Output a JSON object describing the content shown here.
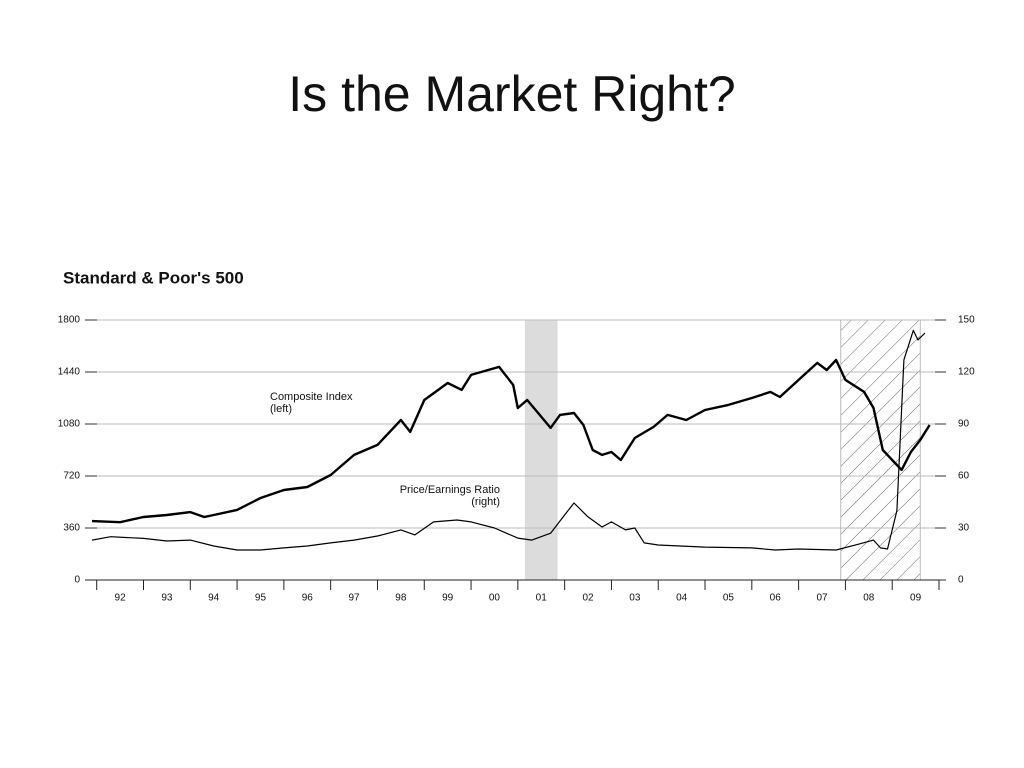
{
  "slide_title": "Is the Market Right?",
  "chart_data": {
    "type": "line",
    "title": "Standard & Poor's 500",
    "annotations": [
      [
        "Composite Index",
        "(left)"
      ],
      [
        "Price/Earnings Ratio",
        "(right)"
      ]
    ],
    "xlim": [
      1991.75,
      2010.0
    ],
    "xticks": [
      {
        "value": 1992,
        "label": "92"
      },
      {
        "value": 1993,
        "label": "93"
      },
      {
        "value": 1994,
        "label": "94"
      },
      {
        "value": 1995,
        "label": "95"
      },
      {
        "value": 1996,
        "label": "96"
      },
      {
        "value": 1997,
        "label": "97"
      },
      {
        "value": 1998,
        "label": "98"
      },
      {
        "value": 1999,
        "label": "99"
      },
      {
        "value": 2000,
        "label": "00"
      },
      {
        "value": 2001,
        "label": "01"
      },
      {
        "value": 2002,
        "label": "02"
      },
      {
        "value": 2003,
        "label": "03"
      },
      {
        "value": 2004,
        "label": "04"
      },
      {
        "value": 2005,
        "label": "05"
      },
      {
        "value": 2006,
        "label": "06"
      },
      {
        "value": 2007,
        "label": "07"
      },
      {
        "value": 2008,
        "label": "08"
      },
      {
        "value": 2009,
        "label": "09"
      }
    ],
    "ylim": [
      0,
      1800
    ],
    "yticks": [
      0,
      360,
      720,
      1080,
      1440,
      1800
    ],
    "y2lim": [
      0,
      150
    ],
    "y2ticks": [
      0,
      30,
      60,
      90,
      120,
      150
    ],
    "grid": true,
    "spans": [
      {
        "x": [
          2001.15,
          2001.85
        ],
        "style": "solid"
      },
      {
        "x": [
          2007.9,
          2009.6
        ],
        "style": "hatched"
      }
    ],
    "series": [
      {
        "name": "Composite Index",
        "color": "#000000",
        "axis": "y",
        "x": [
          1991.9,
          1992.5,
          1993.0,
          1993.5,
          1994.0,
          1994.3,
          1994.5,
          1995.0,
          1995.5,
          1996.0,
          1996.5,
          1997.0,
          1997.5,
          1998.0,
          1998.5,
          1998.7,
          1999.0,
          1999.5,
          1999.8,
          2000.0,
          2000.6,
          2000.9,
          2001.0,
          2001.2,
          2001.7,
          2001.9,
          2002.2,
          2002.4,
          2002.6,
          2002.8,
          2003.0,
          2003.2,
          2003.5,
          2003.9,
          2004.2,
          2004.6,
          2005.0,
          2005.5,
          2006.0,
          2006.4,
          2006.6,
          2007.0,
          2007.4,
          2007.6,
          2007.8,
          2008.0,
          2008.4,
          2008.6,
          2008.8,
          2009.0,
          2009.2,
          2009.4,
          2009.6,
          2009.8
        ],
        "values": [
          408,
          400,
          436,
          450,
          470,
          436,
          450,
          485,
          568,
          623,
          644,
          727,
          866,
          935,
          1108,
          1025,
          1246,
          1364,
          1316,
          1420,
          1475,
          1350,
          1191,
          1246,
          1053,
          1143,
          1156,
          1073,
          900,
          866,
          886,
          831,
          983,
          1060,
          1143,
          1108,
          1177,
          1212,
          1260,
          1302,
          1267,
          1385,
          1503,
          1454,
          1523,
          1385,
          1302,
          1191,
          900,
          831,
          762,
          886,
          970,
          1073
        ]
      },
      {
        "name": "Price/Earnings Ratio",
        "color": "#000000",
        "axis": "y2",
        "x": [
          1991.9,
          1992.3,
          1993.0,
          1993.5,
          1994.0,
          1994.5,
          1995.0,
          1995.5,
          1996.0,
          1996.5,
          1997.0,
          1997.5,
          1998.0,
          1998.5,
          1998.8,
          1999.2,
          1999.7,
          2000.0,
          2000.5,
          2001.0,
          2001.3,
          2001.7,
          2002.0,
          2002.2,
          2002.5,
          2002.8,
          2003.0,
          2003.3,
          2003.5,
          2003.7,
          2004.0,
          2005.0,
          2006.0,
          2006.5,
          2007.0,
          2007.8,
          2008.3,
          2008.6,
          2008.75,
          2008.9,
          2009.1,
          2009.25,
          2009.45,
          2009.55,
          2009.7
        ],
        "values": [
          23,
          25,
          24,
          22.5,
          23,
          19.6,
          17.3,
          17.3,
          18.5,
          19.6,
          21.4,
          23,
          25.4,
          28.9,
          26,
          33.5,
          34.6,
          33.5,
          30,
          24.2,
          23,
          27,
          37.5,
          44.4,
          36.4,
          30.6,
          33.5,
          28.9,
          30,
          21.4,
          20.2,
          19,
          18.5,
          17.3,
          17.9,
          17.3,
          20.8,
          23,
          18.5,
          17.9,
          40,
          127,
          144,
          138.5,
          142.5
        ]
      }
    ]
  }
}
